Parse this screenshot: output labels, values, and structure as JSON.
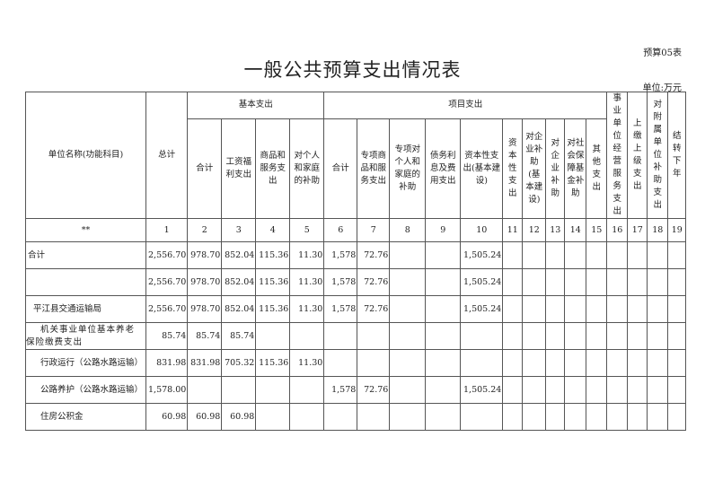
{
  "form_no": "预算05表",
  "title": "一般公共预算支出情况表",
  "unit": "单位:万元",
  "header": {
    "name": "单位名称(功能科目)",
    "total": "总计",
    "basic": "基本支出",
    "project": "项目支出",
    "basic_cols": [
      "合计",
      "工资福利支出",
      "商品和服务支出",
      "对个人和家庭的补助"
    ],
    "project_cols": [
      "合计",
      "专项商品和服务支出",
      "专项对个人和家庭的补助",
      "债务利息及费用支出",
      "资本性支出(基本建设)",
      "资本性支出",
      "对企业补助(基本建设)",
      "对企业补助",
      "对社会保障基金补助",
      "其他支出"
    ],
    "other_cols": [
      "事业单位经营服务支出",
      "上缴上级支出",
      "对附属单位补助支出",
      "结转下年"
    ],
    "index_label": "**",
    "index": [
      "1",
      "2",
      "3",
      "4",
      "5",
      "6",
      "7",
      "8",
      "9",
      "10",
      "11",
      "12",
      "13",
      "14",
      "15",
      "16",
      "17",
      "18",
      "19"
    ]
  },
  "rows": [
    {
      "name": "合计",
      "values": [
        "2,556.70",
        "978.70",
        "852.04",
        "115.36",
        "11.30",
        "1,578",
        "72.76",
        "",
        "",
        "1,505.24",
        "",
        "",
        "",
        "",
        "",
        "",
        "",
        "",
        ""
      ]
    },
    {
      "name": "",
      "values": [
        "2,556.70",
        "978.70",
        "852.04",
        "115.36",
        "11.30",
        "1,578",
        "72.76",
        "",
        "",
        "1,505.24",
        "",
        "",
        "",
        "",
        "",
        "",
        "",
        "",
        ""
      ]
    },
    {
      "name": "平江县交通运输局",
      "values": [
        "2,556.70",
        "978.70",
        "852.04",
        "115.36",
        "11.30",
        "1,578",
        "72.76",
        "",
        "",
        "1,505.24",
        "",
        "",
        "",
        "",
        "",
        "",
        "",
        "",
        ""
      ]
    },
    {
      "name": "机关事业单位基本养老保险缴费支出",
      "values": [
        "85.74",
        "85.74",
        "85.74",
        "",
        "",
        "",
        "",
        "",
        "",
        "",
        "",
        "",
        "",
        "",
        "",
        "",
        "",
        "",
        ""
      ]
    },
    {
      "name": "行政运行（公路水路运输）",
      "values": [
        "831.98",
        "831.98",
        "705.32",
        "115.36",
        "11.30",
        "",
        "",
        "",
        "",
        "",
        "",
        "",
        "",
        "",
        "",
        "",
        "",
        "",
        ""
      ]
    },
    {
      "name": "公路养护（公路水路运输）",
      "values": [
        "1,578.00",
        "",
        "",
        "",
        "",
        "1,578",
        "72.76",
        "",
        "",
        "1,505.24",
        "",
        "",
        "",
        "",
        "",
        "",
        "",
        "",
        ""
      ]
    },
    {
      "name": "住房公积金",
      "values": [
        "60.98",
        "60.98",
        "60.98",
        "",
        "",
        "",
        "",
        "",
        "",
        "",
        "",
        "",
        "",
        "",
        "",
        "",
        "",
        "",
        ""
      ]
    }
  ]
}
